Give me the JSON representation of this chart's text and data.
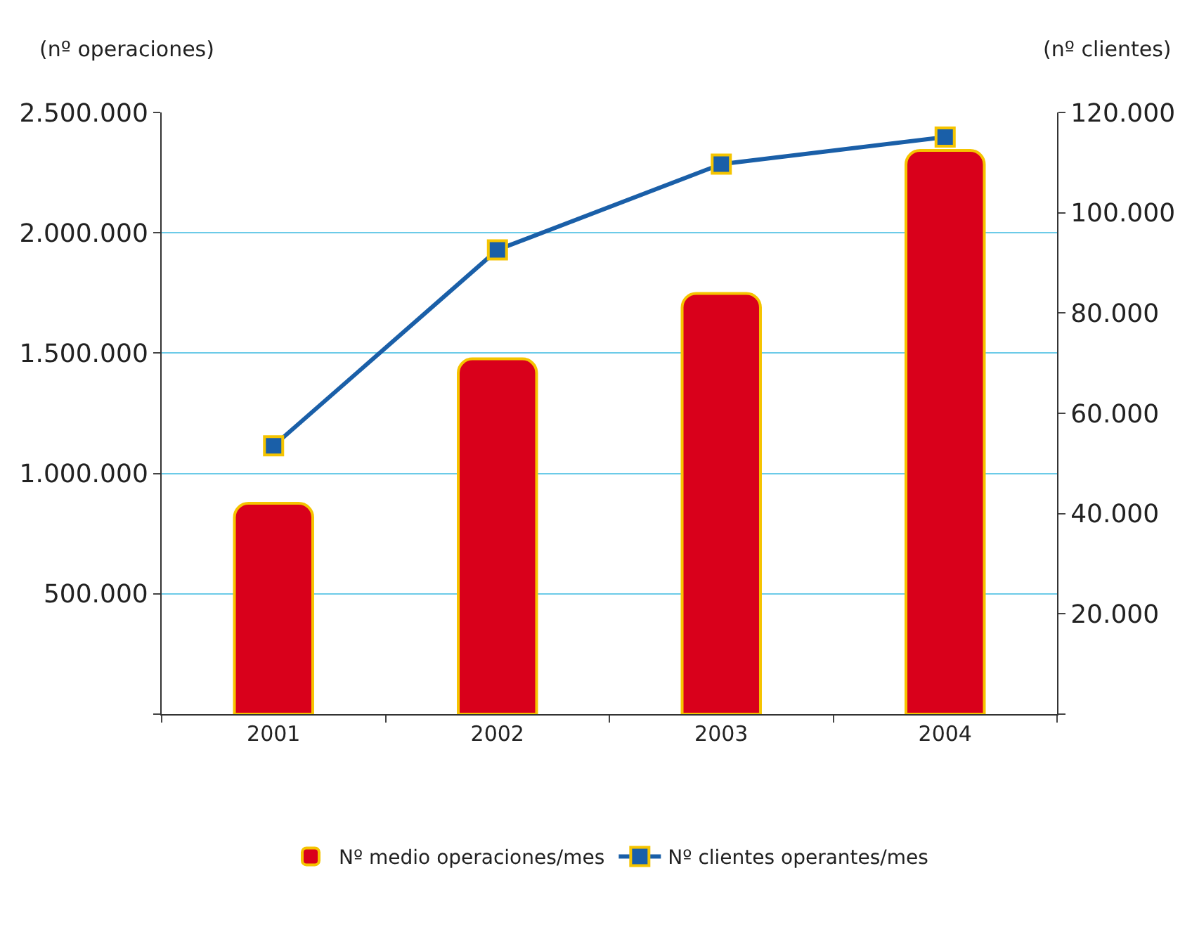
{
  "chart_data": {
    "type": "bar",
    "ylabel": "(nº operaciones)",
    "y2label": "(nº clientes)",
    "categories": [
      "2001",
      "2002",
      "2003",
      "2004"
    ],
    "series": [
      {
        "name": "Nº medio operaciones/mes",
        "color": "#d9001b",
        "values": [
          876000,
          1476000,
          1748000,
          2342000
        ]
      },
      {
        "name": "Nº clientes operantes/mes",
        "type": "line",
        "axis": "y2",
        "color": "#1a5fa8",
        "marker": "square",
        "values": [
          53500,
          92600,
          109700,
          115100
        ]
      }
    ],
    "ylim": [
      0,
      2500000
    ],
    "yticks": [
      {
        "value": 0,
        "label": null
      },
      {
        "value": 500000,
        "label": "500.000"
      },
      {
        "value": 1000000,
        "label": "1.000.000"
      },
      {
        "value": 1500000,
        "label": "1.500.000"
      },
      {
        "value": 2000000,
        "label": "2.000.000"
      },
      {
        "value": 2500000,
        "label": "2.500.000"
      }
    ],
    "y2lim": [
      0,
      120000
    ],
    "y2ticks": [
      {
        "value": 0,
        "label": null
      },
      {
        "value": 20000,
        "label": "20.000"
      },
      {
        "value": 40000,
        "label": "40.000"
      },
      {
        "value": 60000,
        "label": "60.000"
      },
      {
        "value": 80000,
        "label": "80.000"
      },
      {
        "value": 100000,
        "label": "100.000"
      },
      {
        "value": 120000,
        "label": "120.000"
      }
    ],
    "grid": "y",
    "legend": "bottom"
  }
}
